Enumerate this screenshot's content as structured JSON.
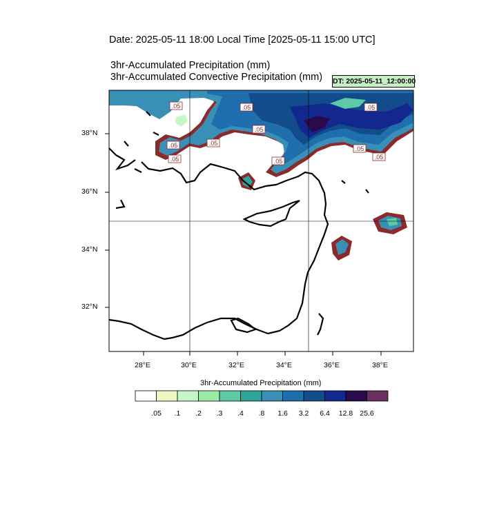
{
  "header": {
    "date_line": "Date: 2025-05-11  18:00 Local Time [2025-05-11  15:00 UTC]",
    "title_lines": [
      "3hr-Accumulated Precipitation   (mm)",
      "3hr-Accumulated Convective Precipitation   (mm)"
    ],
    "dt_label": "DT: 2025-05-11_12:00:00",
    "dt_color": "#c7f0c4"
  },
  "map": {
    "lat_labels": [
      "38°N",
      "36°N",
      "34°N",
      "32°N"
    ],
    "lon_labels": [
      "28°E",
      "30°E",
      "32°E",
      "34°E",
      "36°E",
      "38°E"
    ],
    "contour_labels": [
      ".05",
      ".05",
      ".05",
      ".05",
      ".05",
      ".05",
      ".05",
      ".05",
      ".05",
      ".05"
    ],
    "grid_lines": {
      "lat": [
        35
      ],
      "lon": [
        30,
        35
      ]
    }
  },
  "colorbar": {
    "title": "3hr-Accumulated Precipitation   (mm)",
    "labels": [
      ".05",
      ".1",
      ".2",
      ".3",
      ".4",
      ".8",
      "1.6",
      "3.2",
      "6.4",
      "12.8",
      "25.6"
    ],
    "colors": [
      "#ffffff",
      "#edf7c2",
      "#c6f5c8",
      "#9ceaa6",
      "#5ec9a5",
      "#2da59d",
      "#3a8fb6",
      "#1f6fae",
      "#134c8a",
      "#13288f",
      "#2a0a4a",
      "#6b2f5e"
    ]
  }
}
